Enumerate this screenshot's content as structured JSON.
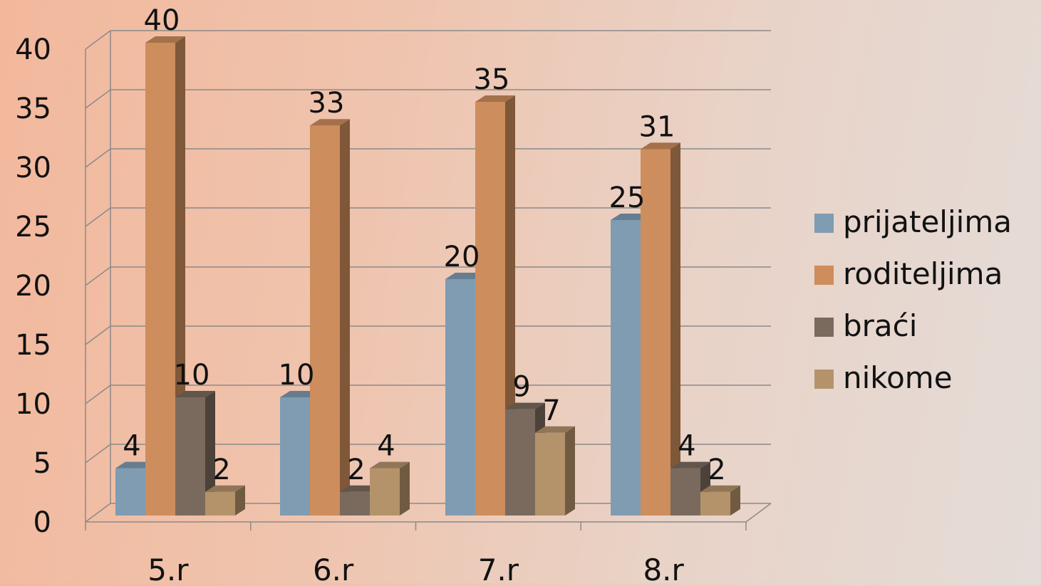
{
  "chart_data": {
    "type": "bar",
    "title": "",
    "xlabel": "",
    "ylabel": "",
    "categories": [
      "5.r",
      "6.r",
      "7.r",
      "8.r"
    ],
    "ylim": [
      0,
      40
    ],
    "yticks": [
      0,
      5,
      10,
      15,
      20,
      25,
      30,
      35,
      40
    ],
    "grid": true,
    "legend_position": "right",
    "series": [
      {
        "name": "prijateljima",
        "color": "#7f9cb3",
        "values": [
          4,
          10,
          20,
          25
        ]
      },
      {
        "name": "roditeljima",
        "color": "#cd8d5c",
        "values": [
          40,
          33,
          35,
          31
        ]
      },
      {
        "name": "braći",
        "color": "#7a6a5e",
        "values": [
          10,
          2,
          9,
          4
        ]
      },
      {
        "name": "nikome",
        "color": "#b4936b",
        "values": [
          2,
          4,
          7,
          2
        ]
      }
    ]
  }
}
